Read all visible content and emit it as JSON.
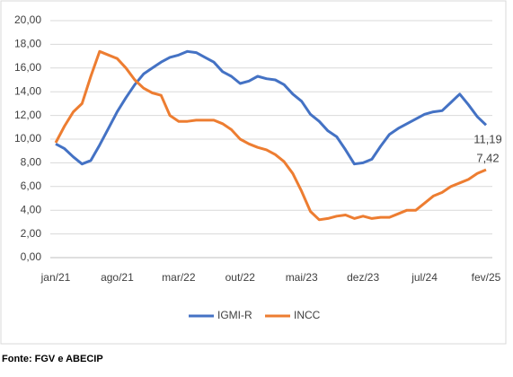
{
  "chart_data": {
    "type": "line",
    "categories": [
      "jan/21",
      null,
      null,
      null,
      null,
      null,
      null,
      "ago/21",
      null,
      null,
      null,
      null,
      null,
      null,
      "mar/22",
      null,
      null,
      null,
      null,
      null,
      null,
      "out/22",
      null,
      null,
      null,
      null,
      null,
      null,
      "mai/23",
      null,
      null,
      null,
      null,
      null,
      null,
      "dez/23",
      null,
      null,
      null,
      null,
      null,
      null,
      "jul/24",
      null,
      null,
      null,
      null,
      null,
      null,
      "fev/25"
    ],
    "series": [
      {
        "name": "IGMI-R",
        "color": "#4472c4",
        "values": [
          9.6,
          9.2,
          8.5,
          7.9,
          8.2,
          9.5,
          10.9,
          12.3,
          13.5,
          14.6,
          15.5,
          16.0,
          16.5,
          16.9,
          17.1,
          17.4,
          17.3,
          16.9,
          16.5,
          15.7,
          15.3,
          14.7,
          14.9,
          15.3,
          15.1,
          15.0,
          14.6,
          13.8,
          13.2,
          12.1,
          11.5,
          10.7,
          10.2,
          9.1,
          7.9,
          8.0,
          8.3,
          9.4,
          10.4,
          10.9,
          11.3,
          11.7,
          12.1,
          12.3,
          12.4,
          13.1,
          13.8,
          12.9,
          11.9,
          11.19
        ],
        "value_labels": [
          null,
          null,
          null,
          null,
          null,
          null,
          null,
          null,
          null,
          null,
          null,
          null,
          null,
          null,
          null,
          null,
          null,
          null,
          null,
          null,
          null,
          null,
          null,
          null,
          null,
          null,
          null,
          null,
          null,
          null,
          null,
          null,
          null,
          null,
          null,
          null,
          null,
          null,
          null,
          null,
          null,
          null,
          null,
          null,
          null,
          null,
          null,
          null,
          null,
          "11,19"
        ]
      },
      {
        "name": "INCC",
        "color": "#ed7d31",
        "values": [
          9.7,
          11.1,
          12.3,
          13.0,
          15.3,
          17.4,
          17.1,
          16.8,
          16.0,
          15.0,
          14.3,
          13.9,
          13.7,
          12.0,
          11.5,
          11.5,
          11.6,
          11.6,
          11.6,
          11.3,
          10.8,
          10.0,
          9.6,
          9.3,
          9.1,
          8.7,
          8.1,
          7.1,
          5.6,
          3.9,
          3.2,
          3.3,
          3.5,
          3.6,
          3.3,
          3.5,
          3.3,
          3.4,
          3.4,
          3.7,
          4.0,
          4.0,
          4.6,
          5.2,
          5.5,
          6.0,
          6.3,
          6.6,
          7.1,
          7.42
        ],
        "value_labels": [
          null,
          null,
          null,
          null,
          null,
          null,
          null,
          null,
          null,
          null,
          null,
          null,
          null,
          null,
          null,
          null,
          null,
          null,
          null,
          null,
          null,
          null,
          null,
          null,
          null,
          null,
          null,
          null,
          null,
          null,
          null,
          null,
          null,
          null,
          null,
          null,
          null,
          null,
          null,
          null,
          null,
          null,
          null,
          null,
          null,
          null,
          null,
          null,
          null,
          "7,42"
        ]
      }
    ],
    "ylim": [
      0,
      20
    ],
    "yticks": [
      {
        "value": 0,
        "label": "0,00"
      },
      {
        "value": 2,
        "label": "2,00"
      },
      {
        "value": 4,
        "label": "4,00"
      },
      {
        "value": 6,
        "label": "6,00"
      },
      {
        "value": 8,
        "label": "8,00"
      },
      {
        "value": 10,
        "label": "10,00"
      },
      {
        "value": 12,
        "label": "12,00"
      },
      {
        "value": 14,
        "label": "14,00"
      },
      {
        "value": 16,
        "label": "16,00"
      },
      {
        "value": 18,
        "label": "18,00"
      },
      {
        "value": 20,
        "label": "20,00"
      }
    ],
    "grid": true,
    "legend": "bottom",
    "source": "Fonte: FGV e ABECIP"
  }
}
